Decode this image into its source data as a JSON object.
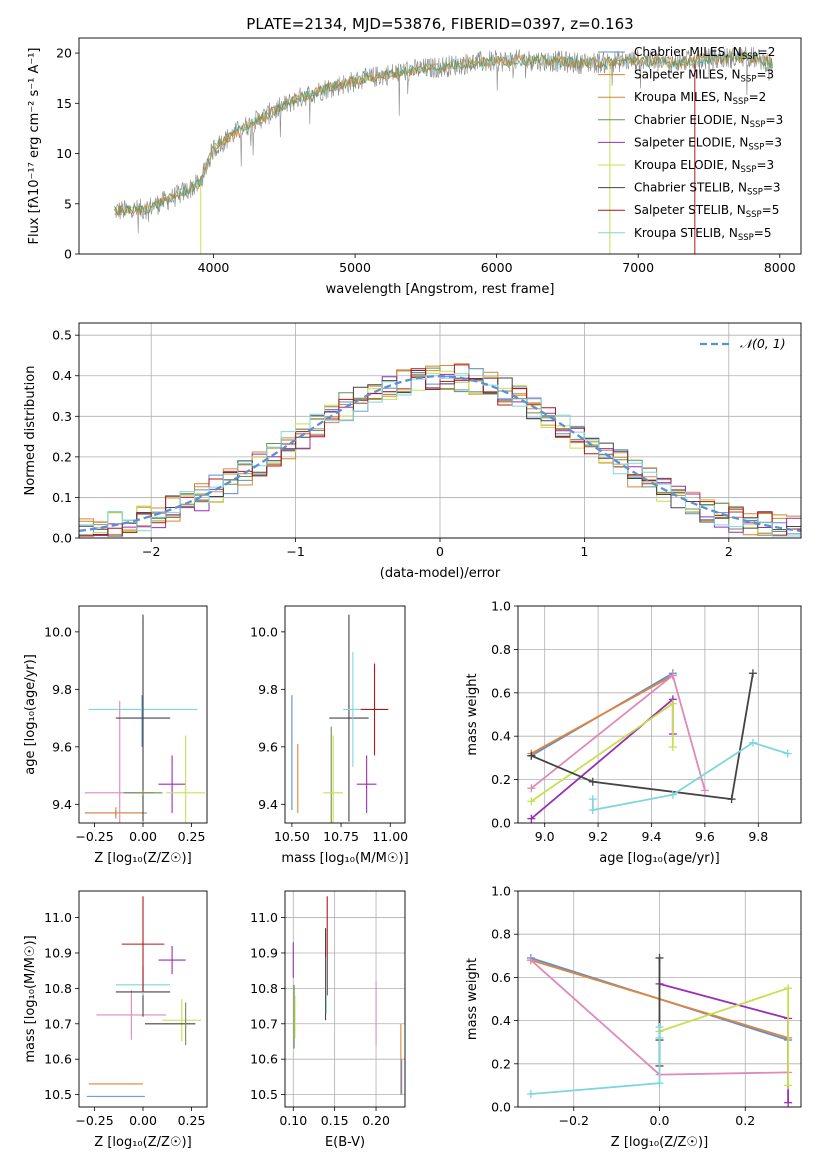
{
  "figure": {
    "title": "PLATE=2134, MJD=53876, FIBERID=0397, z=0.163"
  },
  "colors": {
    "Chabrier MILES": "#5b8fd6",
    "Salpeter MILES": "#e0853a",
    "Kroupa MILES": "#cc8a2a",
    "Chabrier ELODIE": "#6c8f50",
    "Salpeter ELODIE": "#9a2fb3",
    "Kroupa ELODIE": "#c8e050",
    "Chabrier STELIB": "#444444",
    "Salpeter STELIB": "#b01818",
    "Kroupa STELIB": "#7fd6de",
    "extra_pink": "#e08ab8",
    "normal_curve": "#5b8fd6",
    "data_spectrum": "#888888"
  },
  "chart_data": [
    {
      "id": "spectrum",
      "type": "line",
      "xlabel": "wavelength [Angstrom, rest frame]",
      "ylabel": "Flux [fλ10⁻¹⁷ erg cm⁻² s⁻¹ A⁻¹]",
      "xlim": [
        3050,
        8150
      ],
      "ylim": [
        0,
        21.5
      ],
      "xticks": [
        4000,
        5000,
        6000,
        7000,
        8000
      ],
      "yticks": [
        0,
        5,
        10,
        15,
        20
      ],
      "legend_position": "right",
      "series": [
        {
          "name": "Chabrier MILES, N_SSP=2"
        },
        {
          "name": "Salpeter MILES, N_SSP=3"
        },
        {
          "name": "Kroupa MILES, N_SSP=2"
        },
        {
          "name": "Chabrier ELODIE, N_SSP=3"
        },
        {
          "name": "Salpeter ELODIE, N_SSP=3"
        },
        {
          "name": "Kroupa ELODIE, N_SSP=3"
        },
        {
          "name": "Chabrier STELIB, N_SSP=3"
        },
        {
          "name": "Salpeter STELIB, N_SSP=5"
        },
        {
          "name": "Kroupa STELIB, N_SSP=5"
        }
      ],
      "continuum": {
        "x": [
          3300,
          3500,
          3700,
          3900,
          4000,
          4200,
          4400,
          4600,
          4800,
          5000,
          5200,
          5400,
          5600,
          5800,
          6000,
          6200,
          6400,
          6600,
          6800,
          7000,
          7200,
          7400,
          7600,
          7800,
          7950
        ],
        "y": [
          4.3,
          4.4,
          5.5,
          7.0,
          10.5,
          12.5,
          14.0,
          15.5,
          16.5,
          17.2,
          17.8,
          18.3,
          18.6,
          19.0,
          19.2,
          19.3,
          19.2,
          19.0,
          19.1,
          19.3,
          19.0,
          19.3,
          19.5,
          19.6,
          19.0
        ]
      }
    },
    {
      "id": "residuals",
      "type": "line",
      "xlabel": "(data-model)/error",
      "ylabel": "Normed distribution",
      "xlim": [
        -2.5,
        2.5
      ],
      "ylim": [
        0,
        0.53
      ],
      "xticks": [
        -2,
        -1,
        0,
        1,
        2
      ],
      "yticks": [
        0.0,
        0.1,
        0.2,
        0.3,
        0.4,
        0.5
      ],
      "grid": true,
      "legend_position": "top-right",
      "reference_curve": {
        "name": "𝒩(0, 1)",
        "style": "dashed"
      }
    },
    {
      "id": "Z_vs_age",
      "type": "scatter",
      "xlabel": "Z [log₁₀(Z/Z☉)]",
      "ylabel": "age  [log₁₀(age/yr)]",
      "xlim": [
        -0.33,
        0.33
      ],
      "ylim": [
        9.335,
        10.09
      ],
      "xticks": [
        -0.25,
        0.0,
        0.25
      ],
      "yticks": [
        9.4,
        9.6,
        9.8,
        10.0
      ],
      "points": [
        {
          "series": "Chabrier MILES",
          "x": -0.14,
          "y": 9.37,
          "xerr": 0.16,
          "yerr": 0.01
        },
        {
          "series": "Salpeter MILES",
          "x": -0.14,
          "y": 9.37,
          "xerr": 0.15,
          "yerr": 0.02
        },
        {
          "series": "Chabrier MILES",
          "x": -0.005,
          "y": 9.69,
          "xerr": 0.0,
          "yerr": 0.09
        },
        {
          "series": "Kroupa STELIB",
          "x": 0.0,
          "y": 9.73,
          "xerr": 0.28,
          "yerr": 0.31
        },
        {
          "series": "extra_pink",
          "x": -0.12,
          "y": 9.44,
          "xerr": 0.18,
          "yerr": 0.32
        },
        {
          "series": "Chabrier STELIB",
          "x": 0.0,
          "y": 9.7,
          "xerr": 0.14,
          "yerr": 0.36
        },
        {
          "series": "Salpeter ELODIE",
          "x": 0.15,
          "y": 9.47,
          "xerr": 0.07,
          "yerr": 0.1
        },
        {
          "series": "Kroupa ELODIE",
          "x": 0.22,
          "y": 9.44,
          "xerr": 0.1,
          "yerr": 0.2
        },
        {
          "series": "Chabrier ELODIE",
          "x": 0.0,
          "y": 9.44,
          "xerr": 0.1,
          "yerr": 0.01
        }
      ]
    },
    {
      "id": "mass_vs_age",
      "type": "scatter",
      "xlabel": "mass [log₁₀(M/M☉)]",
      "ylabel": "",
      "xlim": [
        10.465,
        11.075
      ],
      "ylim": [
        9.335,
        10.09
      ],
      "xticks": [
        10.5,
        10.75,
        11.0
      ],
      "yticks": [
        9.4,
        9.6,
        9.8,
        10.0
      ],
      "points": [
        {
          "series": "Chabrier MILES",
          "x": 10.5,
          "y": 9.58,
          "xerr": 0.0,
          "yerr": 0.2
        },
        {
          "series": "Salpeter MILES",
          "x": 10.53,
          "y": 9.49,
          "xerr": 0.0,
          "yerr": 0.12
        },
        {
          "series": "Chabrier ELODIE",
          "x": 10.7,
          "y": 9.5,
          "xerr": 0.0,
          "yerr": 0.17
        },
        {
          "series": "Kroupa ELODIE",
          "x": 10.71,
          "y": 9.44,
          "xerr": 0.05,
          "yerr": 0.2
        },
        {
          "series": "Chabrier STELIB",
          "x": 10.79,
          "y": 9.7,
          "xerr": 0.1,
          "yerr": 0.36
        },
        {
          "series": "Kroupa STELIB",
          "x": 10.81,
          "y": 9.73,
          "xerr": 0.05,
          "yerr": 0.2
        },
        {
          "series": "Salpeter ELODIE",
          "x": 10.88,
          "y": 9.47,
          "xerr": 0.05,
          "yerr": 0.1
        },
        {
          "series": "Salpeter STELIB",
          "x": 10.92,
          "y": 9.73,
          "xerr": 0.07,
          "yerr": 0.16
        }
      ]
    },
    {
      "id": "age_vs_massweight",
      "type": "line",
      "xlabel": "age  [log₁₀(age/yr)]",
      "ylabel": "mass weight",
      "xlim": [
        8.9,
        9.96
      ],
      "ylim": [
        0,
        1.0
      ],
      "xticks": [
        9.0,
        9.2,
        9.4,
        9.6,
        9.8
      ],
      "yticks": [
        0.0,
        0.2,
        0.4,
        0.6,
        0.8,
        1.0
      ],
      "grid": true,
      "series": [
        {
          "series": "Chabrier MILES",
          "x": [
            8.95,
            9.48
          ],
          "y": [
            0.31,
            0.69
          ]
        },
        {
          "series": "Salpeter MILES",
          "x": [
            8.95,
            9.48
          ],
          "y": [
            0.32,
            0.68
          ]
        },
        {
          "series": "extra_pink",
          "x": [
            8.95,
            9.48,
            9.6
          ],
          "y": [
            0.16,
            0.68,
            0.15
          ]
        },
        {
          "series": "Salpeter ELODIE",
          "x": [
            8.95,
            9.48,
            9.48
          ],
          "y": [
            0.02,
            0.57,
            0.41
          ]
        },
        {
          "series": "Kroupa ELODIE",
          "x": [
            8.95,
            9.48,
            9.48
          ],
          "y": [
            0.1,
            0.55,
            0.35
          ]
        },
        {
          "series": "Chabrier STELIB",
          "x": [
            8.95,
            9.18,
            9.7,
            9.78
          ],
          "y": [
            0.31,
            0.19,
            0.11,
            0.69
          ]
        },
        {
          "series": "Kroupa STELIB",
          "x": [
            9.18,
            9.18,
            9.48,
            9.78,
            9.91
          ],
          "y": [
            0.11,
            0.06,
            0.13,
            0.37,
            0.32
          ]
        }
      ]
    },
    {
      "id": "Z_vs_mass",
      "type": "scatter",
      "xlabel": "Z [log₁₀(Z/Z☉)]",
      "ylabel": "mass [log₁₀(M/M☉)]",
      "xlim": [
        -0.33,
        0.33
      ],
      "ylim": [
        10.465,
        11.075
      ],
      "xticks": [
        -0.25,
        0.0,
        0.25
      ],
      "yticks": [
        10.5,
        10.6,
        10.7,
        10.8,
        10.9,
        11.0
      ],
      "points": [
        {
          "series": "Chabrier MILES",
          "x": -0.14,
          "y": 10.495,
          "xerr": 0.15,
          "yerr": 0.0
        },
        {
          "series": "Salpeter MILES",
          "x": -0.14,
          "y": 10.53,
          "xerr": 0.14,
          "yerr": 0.0
        },
        {
          "series": "extra_pink",
          "x": -0.06,
          "y": 10.725,
          "xerr": 0.18,
          "yerr": 0.07
        },
        {
          "series": "Chabrier STELIB",
          "x": 0.0,
          "y": 10.79,
          "xerr": 0.14,
          "yerr": 0.07
        },
        {
          "series": "Kroupa STELIB",
          "x": 0.0,
          "y": 10.81,
          "xerr": 0.14,
          "yerr": 0.03
        },
        {
          "series": "Salpeter STELIB",
          "x": 0.0,
          "y": 10.925,
          "xerr": 0.11,
          "yerr": 0.135
        },
        {
          "series": "Salpeter ELODIE",
          "x": 0.15,
          "y": 10.88,
          "xerr": 0.07,
          "yerr": 0.04
        },
        {
          "series": "Kroupa ELODIE",
          "x": 0.2,
          "y": 10.71,
          "xerr": 0.1,
          "yerr": 0.06
        },
        {
          "series": "Chabrier STELIB",
          "x": 0.14,
          "y": 10.7,
          "xerr": 0.13,
          "yerr": 0.0
        },
        {
          "series": "Chabrier ELODIE",
          "x": 0.22,
          "y": 10.7,
          "xerr": 0.0,
          "yerr": 0.06
        }
      ]
    },
    {
      "id": "ebv_vs_mass",
      "type": "scatter",
      "xlabel": "E(B-V)",
      "ylabel": "",
      "xlim": [
        0.09,
        0.235
      ],
      "ylim": [
        10.465,
        11.075
      ],
      "xticks": [
        0.1,
        0.15,
        0.2
      ],
      "yticks": [
        10.5,
        10.6,
        10.7,
        10.8,
        10.9,
        11.0
      ],
      "grid": true,
      "points": [
        {
          "series": "Salpeter ELODIE",
          "x": 0.1,
          "y": 10.88,
          "xerr": 0.0,
          "yerr": 0.05
        },
        {
          "series": "Chabrier ELODIE",
          "x": 0.101,
          "y": 10.72,
          "xerr": 0.0,
          "yerr": 0.09
        },
        {
          "series": "Kroupa ELODIE",
          "x": 0.102,
          "y": 10.72,
          "xerr": 0.0,
          "yerr": 0.06
        },
        {
          "series": "Chabrier STELIB",
          "x": 0.139,
          "y": 10.84,
          "xerr": 0.0,
          "yerr": 0.13
        },
        {
          "series": "Salpeter STELIB",
          "x": 0.141,
          "y": 10.92,
          "xerr": 0.0,
          "yerr": 0.14
        },
        {
          "series": "Kroupa STELIB",
          "x": 0.14,
          "y": 10.81,
          "xerr": 0.0,
          "yerr": 0.08
        },
        {
          "series": "extra_pink",
          "x": 0.2,
          "y": 10.73,
          "xerr": 0.0,
          "yerr": 0.09
        },
        {
          "series": "Salpeter MILES",
          "x": 0.23,
          "y": 10.6,
          "xerr": 0.0,
          "yerr": 0.1
        },
        {
          "series": "Chabrier MILES",
          "x": 0.231,
          "y": 10.55,
          "xerr": 0.0,
          "yerr": 0.05
        }
      ]
    },
    {
      "id": "Z_vs_massweight",
      "type": "line",
      "xlabel": "Z [log₁₀(Z/Z☉)]",
      "ylabel": "mass weight",
      "xlim": [
        -0.33,
        0.33
      ],
      "ylim": [
        0,
        1.0
      ],
      "xticks": [
        -0.2,
        0.0,
        0.2
      ],
      "yticks": [
        0.0,
        0.2,
        0.4,
        0.6,
        0.8,
        1.0
      ],
      "grid": true,
      "series": [
        {
          "series": "Chabrier MILES",
          "x": [
            -0.3,
            0.3
          ],
          "y": [
            0.69,
            0.31
          ]
        },
        {
          "series": "Salpeter MILES",
          "x": [
            -0.3,
            0.3
          ],
          "y": [
            0.68,
            0.32
          ]
        },
        {
          "series": "extra_pink",
          "x": [
            -0.3,
            0.0,
            0.3
          ],
          "y": [
            0.68,
            0.15,
            0.16
          ]
        },
        {
          "series": "Salpeter ELODIE",
          "x": [
            0.0,
            0.3,
            0.3
          ],
          "y": [
            0.57,
            0.41,
            0.02
          ]
        },
        {
          "series": "Kroupa ELODIE",
          "x": [
            0.0,
            0.3,
            0.3
          ],
          "y": [
            0.35,
            0.55,
            0.1
          ]
        },
        {
          "series": "Chabrier STELIB",
          "x": [
            0.0,
            0.0,
            0.0
          ],
          "y": [
            0.69,
            0.31,
            0.19
          ]
        },
        {
          "series": "Kroupa STELIB",
          "x": [
            -0.3,
            0.0,
            0.0,
            0.0
          ],
          "y": [
            0.06,
            0.11,
            0.32,
            0.37
          ]
        }
      ]
    }
  ]
}
